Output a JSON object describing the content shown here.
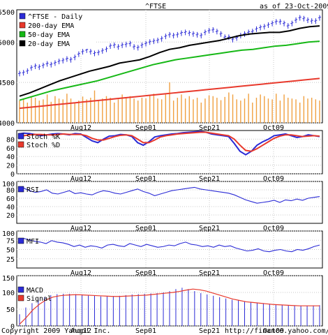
{
  "header": {
    "symbol": "^FTSE",
    "as_of": "as of 23-Oct-2009"
  },
  "footer": {
    "copyright": "Copyright 2009 Yahoo! Inc.",
    "url": "http://finance.yahoo.com/"
  },
  "colors": {
    "price": "#2b2bd6",
    "ema200": "#e8392c",
    "ema50": "#16b816",
    "ema20": "#000000",
    "volume": "#f0a040",
    "stoch_k": "#2b2bd6",
    "stoch_d": "#e8392c",
    "rsi": "#2b2bd6",
    "mfi": "#2b2bd6",
    "macd": "#2b2bd6",
    "signal": "#e8392c",
    "grid": "#c8c8c8"
  },
  "chart_data": [
    {
      "type": "line",
      "panel": "price",
      "title": "^FTSE",
      "x_labels": [
        "Aug12",
        "Sep01",
        "Sep21",
        "Oct09"
      ],
      "ylim": [
        4000,
        5400
      ],
      "yticks": [
        4000,
        4500,
        5000,
        5500
      ],
      "ytick_labels": [
        "4000",
        "4500",
        "5000",
        "5500"
      ],
      "legend_placement": "top-left",
      "grid": true,
      "series": [
        {
          "name": "^FTSE - Daily",
          "values": [
            4610,
            4620,
            4640,
            4680,
            4700,
            4690,
            4710,
            4730,
            4720,
            4740,
            4760,
            4770,
            4790,
            4780,
            4810,
            4850,
            4880,
            4900,
            4880,
            4860,
            4870,
            4890,
            4910,
            4950,
            4960,
            4940,
            4960,
            4970,
            4980,
            4940,
            4930,
            4960,
            4980,
            5000,
            5010,
            5020,
            5040,
            5070,
            5090,
            5080,
            5090,
            5110,
            5120,
            5110,
            5100,
            5090,
            5080,
            5120,
            5140,
            5150,
            5130,
            5100,
            5060,
            5060,
            5030,
            5050,
            5080,
            5100,
            5120,
            5130,
            5160,
            5180,
            5190,
            5210,
            5230,
            5250,
            5250,
            5230,
            5200,
            5230,
            5270,
            5300,
            5290,
            5270,
            5260,
            5260,
            5300
          ]
        },
        {
          "name": "200-day EMA",
          "values": [
            4180,
            4190,
            4200,
            4210,
            4220,
            4230,
            4240,
            4250,
            4260,
            4270,
            4280,
            4290,
            4300,
            4310,
            4320,
            4330,
            4340,
            4350,
            4360,
            4370,
            4380,
            4390,
            4400,
            4410,
            4420,
            4430,
            4440,
            4450,
            4460,
            4470,
            4480,
            4490,
            4500,
            4510,
            4520,
            4530,
            4540,
            4550
          ]
        },
        {
          "name": "50-day EMA",
          "values": [
            4280,
            4320,
            4360,
            4400,
            4430,
            4460,
            4490,
            4520,
            4560,
            4600,
            4640,
            4680,
            4720,
            4750,
            4780,
            4800,
            4820,
            4840,
            4860,
            4880,
            4900,
            4910,
            4930,
            4950,
            4960,
            4980,
            5000,
            5010
          ]
        },
        {
          "name": "20-day EMA",
          "values": [
            4330,
            4370,
            4420,
            4470,
            4520,
            4560,
            4600,
            4640,
            4670,
            4700,
            4740,
            4760,
            4780,
            4820,
            4870,
            4910,
            4930,
            4960,
            4980,
            5000,
            5020,
            5050,
            5080,
            5100,
            5110,
            5120,
            5120,
            5140,
            5170,
            5190,
            5200
          ]
        }
      ],
      "volume": [
        0.55,
        0.6,
        0.5,
        0.65,
        0.62,
        0.55,
        0.58,
        0.7,
        0.52,
        0.66,
        0.6,
        0.58,
        0.72,
        0.6,
        0.5,
        0.55,
        0.65,
        0.58,
        0.62,
        0.8,
        0.56,
        0.6,
        0.66,
        0.62,
        0.5,
        0.58,
        0.7,
        0.62,
        0.66,
        0.6,
        0.55,
        0.62,
        0.6,
        0.68,
        0.72,
        0.6,
        0.58,
        0.7,
        1.0,
        0.55,
        0.62,
        0.7,
        0.6,
        0.66,
        0.58,
        0.62,
        0.5,
        0.6,
        0.68,
        0.66,
        0.62,
        0.56,
        0.64,
        0.75,
        0.7,
        0.58,
        0.55,
        0.6,
        0.72,
        0.5,
        0.62,
        0.7,
        0.66,
        0.6,
        0.58,
        0.72,
        0.55,
        0.7,
        0.62,
        0.6,
        0.58,
        0.5,
        0.66,
        0.6,
        0.62,
        0.58,
        0.55
      ]
    },
    {
      "type": "line",
      "panel": "stochastic",
      "x_labels": [
        "Aug12",
        "Sep01",
        "Sep21",
        "Oct09"
      ],
      "ylim": [
        0,
        100
      ],
      "yticks": [
        0,
        20,
        40,
        60,
        80
      ],
      "ytick_labels": [
        "0",
        "20",
        "40",
        "60",
        "80"
      ],
      "series": [
        {
          "name": "Stoch %K",
          "values": [
            92,
            94,
            93,
            91,
            88,
            90,
            92,
            93,
            92,
            90,
            93,
            92,
            84,
            76,
            72,
            80,
            87,
            88,
            91,
            90,
            86,
            72,
            66,
            74,
            85,
            88,
            90,
            92,
            93,
            95,
            96,
            97,
            98,
            96,
            92,
            90,
            88,
            86,
            70,
            52,
            44,
            52,
            66,
            74,
            80,
            88,
            90,
            92,
            88,
            84,
            86,
            90,
            88,
            86
          ]
        },
        {
          "name": "Stoch %D",
          "values": [
            86,
            88,
            90,
            91,
            91,
            90,
            90,
            91,
            92,
            91,
            91,
            91,
            88,
            82,
            78,
            78,
            82,
            86,
            89,
            90,
            88,
            80,
            72,
            72,
            78,
            85,
            88,
            90,
            92,
            93,
            94,
            95,
            96,
            96,
            94,
            92,
            90,
            88,
            80,
            66,
            54,
            52,
            58,
            66,
            74,
            82,
            87,
            90,
            90,
            88,
            86,
            87,
            88,
            87
          ]
        }
      ]
    },
    {
      "type": "line",
      "panel": "rsi",
      "x_labels": [
        "Aug12",
        "Sep01",
        "Sep21",
        "Oct09"
      ],
      "ylim": [
        0,
        100
      ],
      "yticks": [
        20,
        40,
        60,
        80,
        100
      ],
      "ytick_labels": [
        "20",
        "40",
        "60",
        "80",
        "100"
      ],
      "series": [
        {
          "name": "RSI",
          "values": [
            80,
            84,
            78,
            74,
            76,
            80,
            72,
            70,
            74,
            78,
            71,
            73,
            70,
            68,
            74,
            78,
            76,
            72,
            70,
            74,
            78,
            82,
            76,
            72,
            66,
            70,
            74,
            78,
            80,
            82,
            84,
            86,
            82,
            80,
            78,
            76,
            74,
            72,
            68,
            62,
            56,
            52,
            48,
            50,
            52,
            55,
            50,
            56,
            54,
            58,
            55,
            60,
            62,
            64
          ]
        }
      ]
    },
    {
      "type": "line",
      "panel": "mfi",
      "x_labels": [
        "Aug12",
        "Sep01",
        "Sep21",
        "Oct09"
      ],
      "ylim": [
        0,
        100
      ],
      "yticks": [
        25,
        50,
        75,
        100
      ],
      "ytick_labels": [
        "25",
        "50",
        "75",
        "100"
      ],
      "series": [
        {
          "name": "MFI",
          "values": [
            78,
            80,
            76,
            72,
            70,
            66,
            74,
            70,
            68,
            64,
            58,
            62,
            56,
            60,
            58,
            54,
            62,
            64,
            60,
            58,
            66,
            62,
            58,
            64,
            60,
            56,
            58,
            62,
            60,
            66,
            70,
            64,
            62,
            58,
            60,
            56,
            62,
            58,
            60,
            54,
            50,
            46,
            48,
            52,
            46,
            44,
            48,
            50,
            46,
            44,
            50,
            48,
            52,
            58,
            62
          ]
        }
      ]
    },
    {
      "type": "bar",
      "panel": "macd",
      "x_labels": [
        "Aug12",
        "Sep01",
        "Sep21",
        "Oct09"
      ],
      "ylim": [
        0,
        150
      ],
      "yticks": [
        0,
        50,
        100,
        150
      ],
      "ytick_labels": [
        "0",
        "50",
        "100",
        "150"
      ],
      "series": [
        {
          "name": "MACD",
          "values": [
            35,
            55,
            68,
            78,
            86,
            92,
            95,
            96,
            96,
            95,
            94,
            92,
            90,
            88,
            88,
            89,
            90,
            92,
            94,
            95,
            96,
            97,
            98,
            100,
            104,
            110,
            114,
            110,
            104,
            98,
            94,
            90,
            86,
            82,
            78,
            76,
            74,
            72,
            70,
            68,
            66,
            64,
            63,
            62,
            61,
            60,
            60,
            61,
            62
          ]
        },
        {
          "name": "Signal",
          "values": [
            5,
            25,
            48,
            65,
            78,
            86,
            90,
            92,
            93,
            93,
            92,
            91,
            90,
            89,
            88,
            88,
            89,
            90,
            91,
            92,
            94,
            96,
            98,
            100,
            103,
            107,
            110,
            108,
            104,
            98,
            92,
            86,
            80,
            76,
            72,
            70,
            68,
            66,
            64,
            63,
            62,
            61,
            60,
            60,
            60,
            60
          ]
        }
      ]
    }
  ]
}
